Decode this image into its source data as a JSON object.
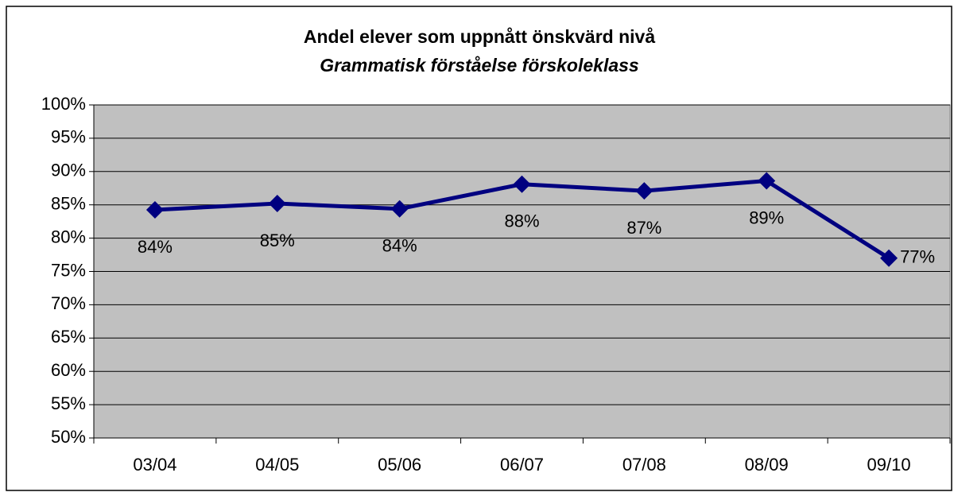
{
  "chart_data": {
    "type": "line",
    "title": "Andel elever som uppnått önskvärd nivå",
    "subtitle": "Grammatisk förståelse förskoleklass",
    "categories": [
      "03/04",
      "04/05",
      "05/06",
      "06/07",
      "07/08",
      "08/09",
      "09/10"
    ],
    "values": [
      84.25,
      85.2,
      84.4,
      88.1,
      87.1,
      88.6,
      77
    ],
    "value_labels": [
      "84%",
      "85%",
      "84%",
      "88%",
      "87%",
      "89%",
      "77%"
    ],
    "color": "#000080",
    "ylim": [
      50,
      100
    ],
    "yticks": [
      {
        "value": 50,
        "label": "50%"
      },
      {
        "value": 55,
        "label": "55%"
      },
      {
        "value": 60,
        "label": "60%"
      },
      {
        "value": 65,
        "label": "65%"
      },
      {
        "value": 70,
        "label": "70%"
      },
      {
        "value": 75,
        "label": "75%"
      },
      {
        "value": 80,
        "label": "80%"
      },
      {
        "value": 85,
        "label": "85%"
      },
      {
        "value": 90,
        "label": "90%"
      },
      {
        "value": 95,
        "label": "95%"
      },
      {
        "value": 100,
        "label": "100%"
      }
    ],
    "grid": true
  }
}
